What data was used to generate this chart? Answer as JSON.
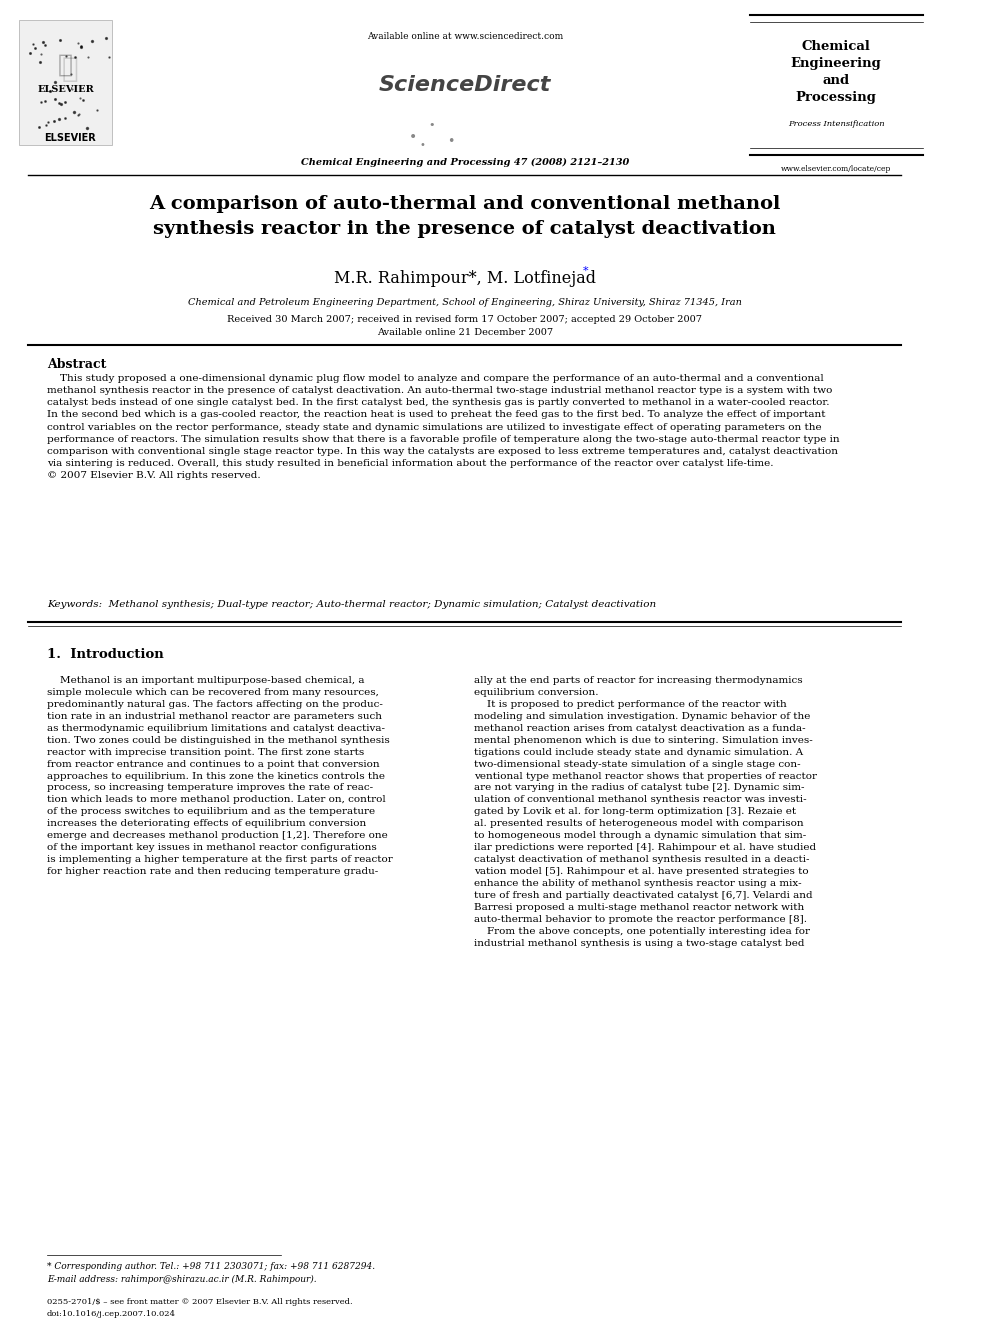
{
  "page_width": 9.92,
  "page_height": 13.23,
  "bg_color": "#ffffff",
  "title": "A comparison of auto-thermal and conventional methanol\nsynthesis reactor in the presence of catalyst deactivation",
  "authors": "M.R. Rahimpour*, M. Lotfinejad",
  "affiliation": "Chemical and Petroleum Engineering Department, School of Engineering, Shiraz University, Shiraz 71345, Iran",
  "received": "Received 30 March 2007; received in revised form 17 October 2007; accepted 29 October 2007",
  "available": "Available online 21 December 2007",
  "journal_header": "Chemical Engineering and Processing 47 (2008) 2121–2130",
  "elsevier_url": "www.elsevier.com/locate/cep",
  "sciencedirect_text": "Available online at www.sciencedirect.com",
  "journal_box_title": "Chemical\nEngineering\nand\nProcessing",
  "journal_box_subtitle": "Process Intensification",
  "abstract_title": "Abstract",
  "abstract_text": "    This study proposed a one-dimensional dynamic plug flow model to analyze and compare the performance of an auto-thermal and a conventional\nmethanol synthesis reactor in the presence of catalyst deactivation. An auto-thermal two-stage industrial methanol reactor type is a system with two\ncatalyst beds instead of one single catalyst bed. In the first catalyst bed, the synthesis gas is partly converted to methanol in a water-cooled reactor.\nIn the second bed which is a gas-cooled reactor, the reaction heat is used to preheat the feed gas to the first bed. To analyze the effect of important\ncontrol variables on the rector performance, steady state and dynamic simulations are utilized to investigate effect of operating parameters on the\nperformance of reactors. The simulation results show that there is a favorable profile of temperature along the two-stage auto-thermal reactor type in\ncomparison with conventional single stage reactor type. In this way the catalysts are exposed to less extreme temperatures and, catalyst deactivation\nvia sintering is reduced. Overall, this study resulted in beneficial information about the performance of the reactor over catalyst life-time.\n© 2007 Elsevier B.V. All rights reserved.",
  "keywords_text": "Keywords:  Methanol synthesis; Dual-type reactor; Auto-thermal reactor; Dynamic simulation; Catalyst deactivation",
  "section1_title": "1.  Introduction",
  "intro_col1": "    Methanol is an important multipurpose-based chemical, a\nsimple molecule which can be recovered from many resources,\npredominantly natural gas. The factors affecting on the produc-\ntion rate in an industrial methanol reactor are parameters such\nas thermodynamic equilibrium limitations and catalyst deactiva-\ntion. Two zones could be distinguished in the methanol synthesis\nreactor with imprecise transition point. The first zone starts\nfrom reactor entrance and continues to a point that conversion\napproaches to equilibrium. In this zone the kinetics controls the\nprocess, so increasing temperature improves the rate of reac-\ntion which leads to more methanol production. Later on, control\nof the process switches to equilibrium and as the temperature\nincreases the deteriorating effects of equilibrium conversion\nemerge and decreases methanol production [1,2]. Therefore one\nof the important key issues in methanol reactor configurations\nis implementing a higher temperature at the first parts of reactor\nfor higher reaction rate and then reducing temperature gradu-",
  "intro_col2": "ally at the end parts of reactor for increasing thermodynamics\nequilibrium conversion.\n    It is proposed to predict performance of the reactor with\nmodeling and simulation investigation. Dynamic behavior of the\nmethanol reaction arises from catalyst deactivation as a funda-\nmental phenomenon which is due to sintering. Simulation inves-\ntigations could include steady state and dynamic simulation. A\ntwo-dimensional steady-state simulation of a single stage con-\nventional type methanol reactor shows that properties of reactor\nare not varying in the radius of catalyst tube [2]. Dynamic sim-\nulation of conventional methanol synthesis reactor was investi-\ngated by Lovik et al. for long-term optimization [3]. Rezaie et\nal. presented results of heterogeneous model with comparison\nto homogeneous model through a dynamic simulation that sim-\nilar predictions were reported [4]. Rahimpour et al. have studied\ncatalyst deactivation of methanol synthesis resulted in a deacti-\nvation model [5]. Rahimpour et al. have presented strategies to\nenhance the ability of methanol synthesis reactor using a mix-\nture of fresh and partially deactivated catalyst [6,7]. Velardi and\nBarresi proposed a multi-stage methanol reactor network with\nauto-thermal behavior to promote the reactor performance [8].\n    From the above concepts, one potentially interesting idea for\nindustrial methanol synthesis is using a two-stage catalyst bed",
  "footnote_star": "* Corresponding author. Tel.: +98 711 2303071; fax: +98 711 6287294.",
  "footnote_email": "E-mail address: rahimpor@shirazu.ac.ir (M.R. Rahimpour).",
  "footer_issn": "0255-2701/$ – see front matter © 2007 Elsevier B.V. All rights reserved.",
  "footer_doi": "doi:10.1016/j.cep.2007.10.024"
}
